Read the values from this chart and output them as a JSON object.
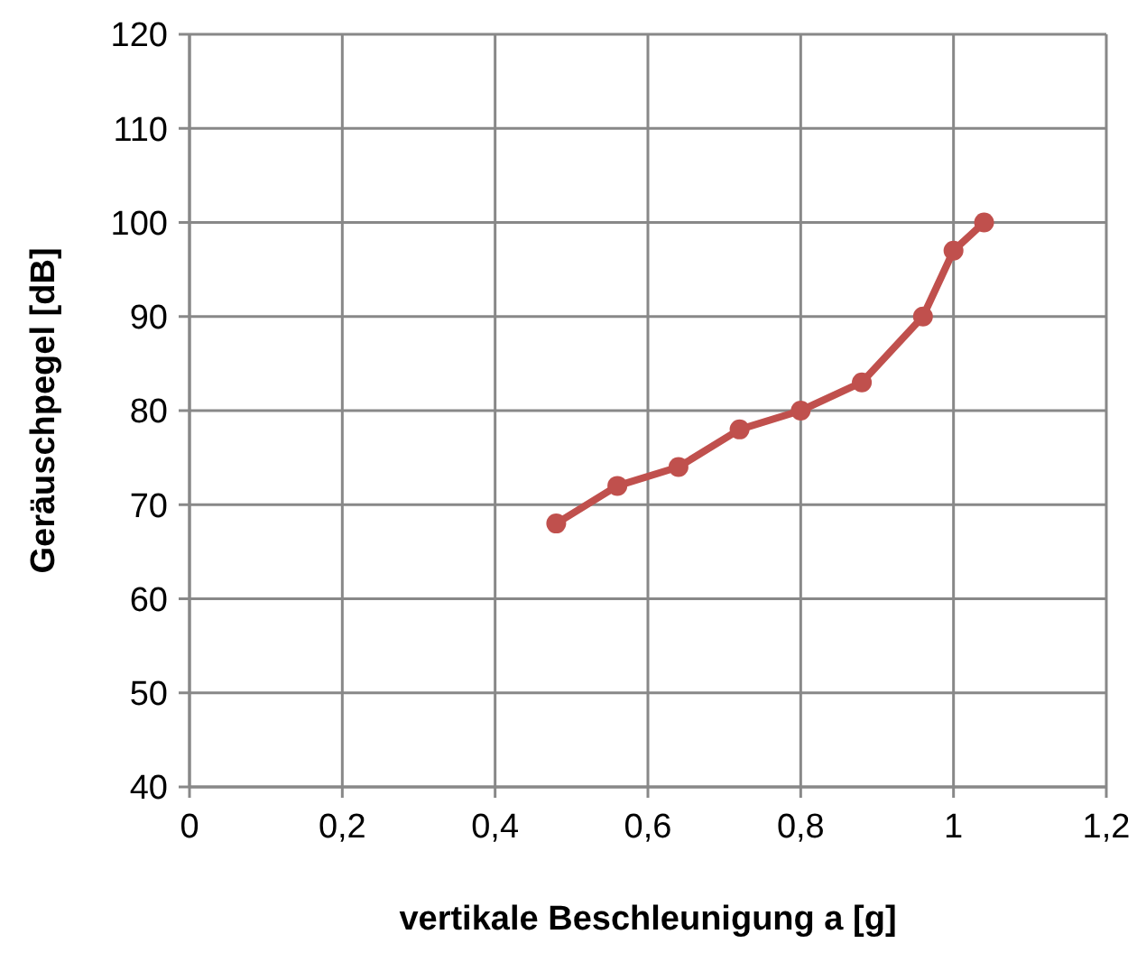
{
  "chart_data": {
    "type": "line",
    "xlabel": "vertikale Beschleunigung a [g]",
    "ylabel": "Geräuschpegel [dB]",
    "x": [
      0.48,
      0.56,
      0.64,
      0.72,
      0.8,
      0.88,
      0.96,
      1.0,
      1.04
    ],
    "series": [
      {
        "color": "#c0504d",
        "values": [
          68,
          72,
          74,
          78,
          80,
          83,
          90,
          97,
          100
        ]
      }
    ],
    "xlim": [
      0,
      1.2
    ],
    "xticks": [
      0,
      {
        "value": 0.2,
        "label": "0,2"
      },
      {
        "value": 0.4,
        "label": "0,4"
      },
      {
        "value": 0.6,
        "label": "0,6"
      },
      {
        "value": 0.8,
        "label": "0,8"
      },
      1,
      {
        "value": 1.2,
        "label": "1,2"
      }
    ],
    "ylim": [
      40,
      120
    ],
    "yticks": [
      40,
      50,
      60,
      70,
      80,
      90,
      100,
      110,
      120
    ],
    "grid": true,
    "marker": "circle",
    "line_style": "solid"
  }
}
